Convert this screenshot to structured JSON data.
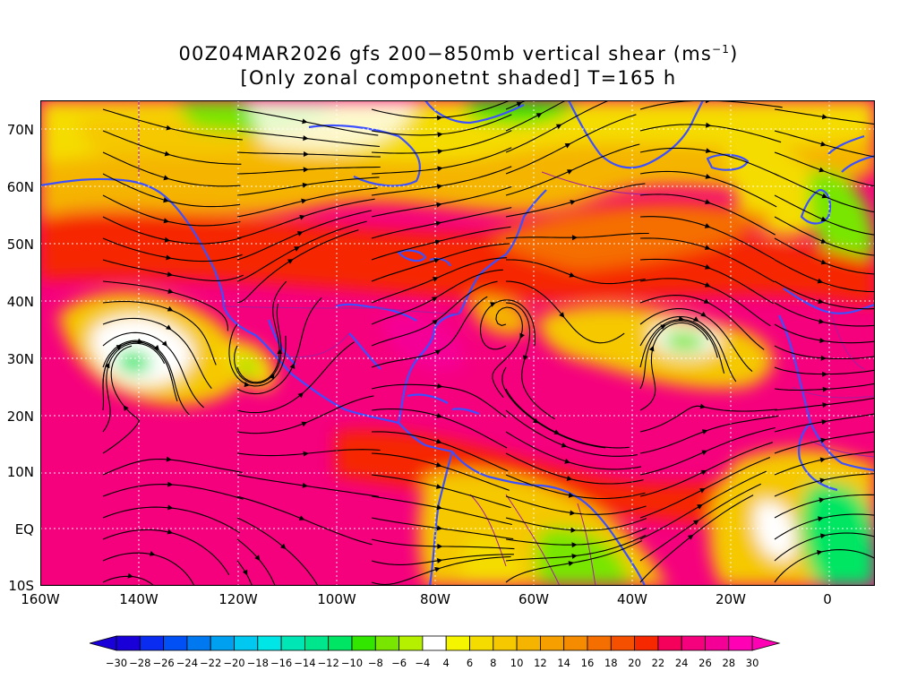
{
  "title": {
    "line1_prefix": "00Z04MAR2026 gfs 200−850mb vertical shear (ms",
    "line1_sup": "−1",
    "line1_suffix": ")",
    "line2": "[Only zonal componetnt shaded] T=165 h"
  },
  "lat_labels": [
    "70N",
    "60N",
    "50N",
    "40N",
    "30N",
    "20N",
    "10N",
    "EQ",
    "10S"
  ],
  "lon_labels": [
    "160W",
    "140W",
    "120W",
    "100W",
    "80W",
    "60W",
    "40W",
    "20W",
    "0"
  ],
  "colorbar": {
    "labels": [
      "−30",
      "−28",
      "−26",
      "−24",
      "−22",
      "−20",
      "−18",
      "−16",
      "−14",
      "−12",
      "−10",
      "−8",
      "−6",
      "−4",
      "4",
      "6",
      "8",
      "10",
      "12",
      "14",
      "16",
      "18",
      "20",
      "22",
      "24",
      "26",
      "28",
      "30"
    ],
    "colors": [
      "#1a00d8",
      "#0a2cf0",
      "#0050f5",
      "#0078f0",
      "#00a0f0",
      "#00c8f0",
      "#00e6e6",
      "#00e6b4",
      "#00e68c",
      "#00e664",
      "#32e600",
      "#78e600",
      "#b4f000",
      "#ffffff",
      "#f5f500",
      "#f5dc00",
      "#f5c800",
      "#f5b400",
      "#f5a000",
      "#f58c00",
      "#f56e00",
      "#f55000",
      "#f52800",
      "#f5005a",
      "#f5007d",
      "#f50096",
      "#ff00b4"
    ],
    "under_color": "#1a00d8",
    "over_color": "#ff00b4"
  },
  "map_colors": {
    "coast": "#3c50ff",
    "borders": "#a020a0",
    "streamlines": "#000000"
  }
}
